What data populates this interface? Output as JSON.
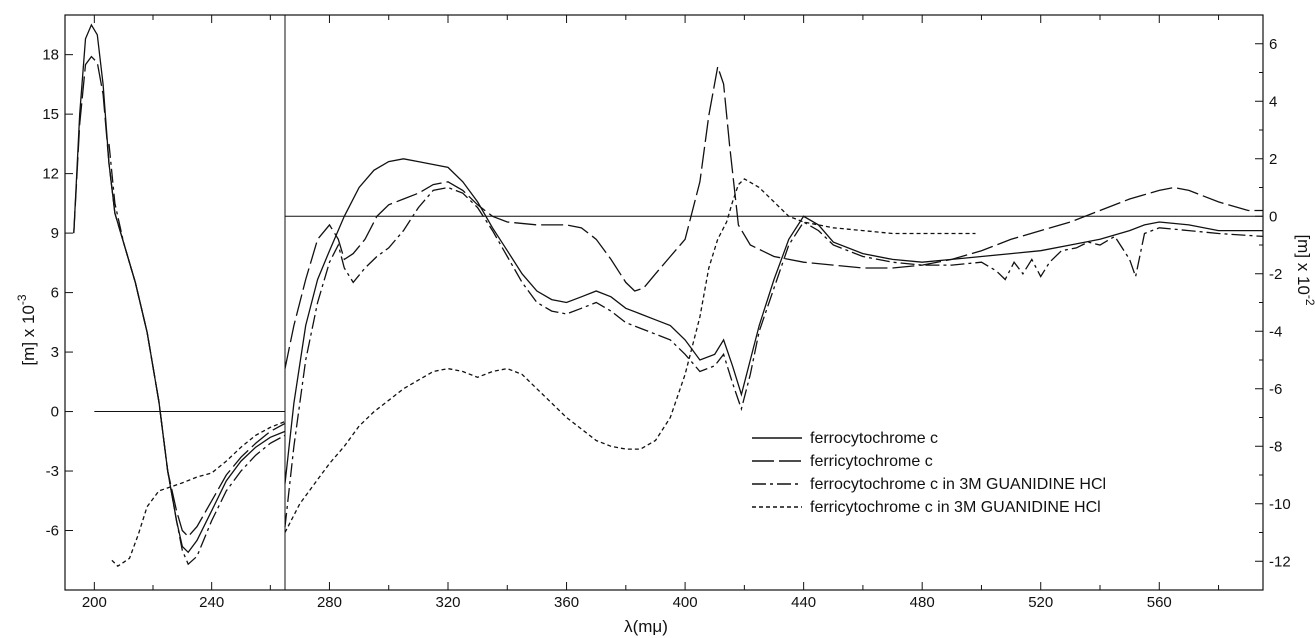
{
  "chart_data": {
    "type": "line",
    "title": "",
    "xlabel": "λ(mμ)",
    "left_panel": {
      "ylabel": "[m] x 10",
      "ylabel_exp": "-3",
      "xlim": [
        190,
        265
      ],
      "ylim": [
        -9,
        20
      ],
      "xticks": [
        200,
        240
      ],
      "xticks_minor": [
        220,
        260
      ],
      "yticks": [
        18,
        15,
        12,
        9,
        6,
        3,
        0,
        -3,
        -6
      ],
      "zero_line": {
        "x": [
          200,
          265
        ],
        "y": 0
      }
    },
    "right_panel": {
      "ylabel": "[m] x 10",
      "ylabel_exp": "-2",
      "xlim": [
        265,
        595
      ],
      "ylim": [
        -13,
        7
      ],
      "xticks": [
        280,
        320,
        360,
        400,
        440,
        480,
        520,
        560
      ],
      "yticks": [
        6,
        4,
        2,
        0,
        -2,
        -4,
        -6,
        -8,
        -10,
        -12
      ],
      "zero_line": {
        "x": [
          265,
          595
        ],
        "y": 0
      }
    },
    "legend": {
      "position": "lower-right",
      "entries": [
        {
          "label": "ferrocytochrome c",
          "style": "solid"
        },
        {
          "label": "ferricytochrome c",
          "style": "longdash"
        },
        {
          "label": "ferrocytochrome c in 3M GUANIDINE HCl",
          "style": "dashdot"
        },
        {
          "label": "ferricytochrome c in 3M GUANIDINE HCl",
          "style": "shortdash"
        }
      ]
    },
    "series": [
      {
        "style": "solid",
        "left": [
          [
            193,
            9
          ],
          [
            195,
            15
          ],
          [
            197,
            18.8
          ],
          [
            199,
            19.5
          ],
          [
            201,
            19
          ],
          [
            203,
            16.5
          ],
          [
            205,
            12.5
          ],
          [
            207,
            10
          ],
          [
            210,
            8.5
          ],
          [
            214,
            6.5
          ],
          [
            218,
            4
          ],
          [
            222,
            0.5
          ],
          [
            225,
            -3
          ],
          [
            228,
            -5.5
          ],
          [
            230,
            -6.8
          ],
          [
            232,
            -7.1
          ],
          [
            235,
            -6.5
          ],
          [
            240,
            -5
          ],
          [
            245,
            -3.5
          ],
          [
            250,
            -2.5
          ],
          [
            255,
            -1.8
          ],
          [
            260,
            -1.3
          ],
          [
            265,
            -1
          ]
        ],
        "right": [
          [
            265,
            -9.3
          ],
          [
            268,
            -6.5
          ],
          [
            272,
            -3.8
          ],
          [
            276,
            -2.2
          ],
          [
            280,
            -1.2
          ],
          [
            285,
            0
          ],
          [
            290,
            1
          ],
          [
            295,
            1.6
          ],
          [
            300,
            1.9
          ],
          [
            305,
            2
          ],
          [
            310,
            1.9
          ],
          [
            315,
            1.8
          ],
          [
            320,
            1.7
          ],
          [
            325,
            1.2
          ],
          [
            330,
            0.5
          ],
          [
            335,
            -0.4
          ],
          [
            340,
            -1.2
          ],
          [
            345,
            -2
          ],
          [
            350,
            -2.6
          ],
          [
            355,
            -2.9
          ],
          [
            360,
            -3
          ],
          [
            365,
            -2.8
          ],
          [
            370,
            -2.6
          ],
          [
            375,
            -2.8
          ],
          [
            380,
            -3.2
          ],
          [
            385,
            -3.4
          ],
          [
            390,
            -3.6
          ],
          [
            395,
            -3.8
          ],
          [
            400,
            -4.3
          ],
          [
            405,
            -5
          ],
          [
            410,
            -4.8
          ],
          [
            413,
            -4.3
          ],
          [
            416,
            -5.2
          ],
          [
            419,
            -6.2
          ],
          [
            422,
            -5
          ],
          [
            425,
            -3.8
          ],
          [
            430,
            -2.2
          ],
          [
            435,
            -0.8
          ],
          [
            440,
            0
          ],
          [
            445,
            -0.3
          ],
          [
            450,
            -0.9
          ],
          [
            460,
            -1.3
          ],
          [
            470,
            -1.5
          ],
          [
            480,
            -1.6
          ],
          [
            490,
            -1.5
          ],
          [
            500,
            -1.4
          ],
          [
            510,
            -1.3
          ],
          [
            520,
            -1.2
          ],
          [
            530,
            -1
          ],
          [
            540,
            -0.8
          ],
          [
            550,
            -0.5
          ],
          [
            555,
            -0.3
          ],
          [
            560,
            -0.2
          ],
          [
            570,
            -0.3
          ],
          [
            580,
            -0.5
          ],
          [
            595,
            -0.5
          ]
        ]
      },
      {
        "style": "longdash",
        "left": [
          [
            193,
            9
          ],
          [
            195,
            14.5
          ],
          [
            197,
            17.5
          ],
          [
            199,
            17.9
          ],
          [
            201,
            17.6
          ],
          [
            203,
            16
          ],
          [
            205,
            12.5
          ],
          [
            207,
            10
          ],
          [
            210,
            8.5
          ],
          [
            214,
            6.5
          ],
          [
            218,
            4
          ],
          [
            222,
            0.5
          ],
          [
            225,
            -3
          ],
          [
            228,
            -5
          ],
          [
            230,
            -6
          ],
          [
            232,
            -6.3
          ],
          [
            235,
            -5.8
          ],
          [
            240,
            -4.5
          ],
          [
            245,
            -3.2
          ],
          [
            250,
            -2.3
          ],
          [
            255,
            -1.6
          ],
          [
            260,
            -1
          ],
          [
            265,
            -0.6
          ]
        ],
        "right": [
          [
            265,
            -5.3
          ],
          [
            268,
            -3.8
          ],
          [
            272,
            -2.2
          ],
          [
            276,
            -0.8
          ],
          [
            280,
            -0.3
          ],
          [
            283,
            -0.8
          ],
          [
            285,
            -1.5
          ],
          [
            288,
            -1.3
          ],
          [
            292,
            -0.8
          ],
          [
            296,
            0
          ],
          [
            300,
            0.4
          ],
          [
            305,
            0.6
          ],
          [
            310,
            0.8
          ],
          [
            315,
            1.1
          ],
          [
            320,
            1.2
          ],
          [
            325,
            0.9
          ],
          [
            330,
            0.4
          ],
          [
            335,
            0
          ],
          [
            340,
            -0.2
          ],
          [
            350,
            -0.3
          ],
          [
            360,
            -0.3
          ],
          [
            365,
            -0.4
          ],
          [
            370,
            -0.8
          ],
          [
            375,
            -1.5
          ],
          [
            380,
            -2.3
          ],
          [
            383,
            -2.6
          ],
          [
            386,
            -2.5
          ],
          [
            390,
            -2
          ],
          [
            395,
            -1.4
          ],
          [
            400,
            -0.8
          ],
          [
            405,
            1.2
          ],
          [
            408,
            3.5
          ],
          [
            411,
            5.2
          ],
          [
            413,
            4.6
          ],
          [
            415,
            2.5
          ],
          [
            418,
            -0.3
          ],
          [
            422,
            -1
          ],
          [
            430,
            -1.4
          ],
          [
            440,
            -1.6
          ],
          [
            450,
            -1.7
          ],
          [
            460,
            -1.8
          ],
          [
            470,
            -1.8
          ],
          [
            480,
            -1.7
          ],
          [
            490,
            -1.5
          ],
          [
            500,
            -1.2
          ],
          [
            510,
            -0.8
          ],
          [
            520,
            -0.5
          ],
          [
            530,
            -0.2
          ],
          [
            540,
            0.2
          ],
          [
            550,
            0.6
          ],
          [
            560,
            0.9
          ],
          [
            565,
            1
          ],
          [
            570,
            0.9
          ],
          [
            580,
            0.5
          ],
          [
            590,
            0.2
          ],
          [
            595,
            0.2
          ]
        ]
      },
      {
        "style": "dashdot",
        "left": [
          [
            205,
            13.5
          ],
          [
            207,
            10.5
          ],
          [
            210,
            8.5
          ],
          [
            214,
            6.5
          ],
          [
            218,
            4
          ],
          [
            222,
            0.5
          ],
          [
            225,
            -3
          ],
          [
            228,
            -5.5
          ],
          [
            230,
            -7
          ],
          [
            232,
            -7.7
          ],
          [
            235,
            -7.3
          ],
          [
            240,
            -5.5
          ],
          [
            245,
            -4
          ],
          [
            250,
            -3
          ],
          [
            255,
            -2.2
          ],
          [
            260,
            -1.6
          ],
          [
            265,
            -1.2
          ]
        ],
        "right": [
          [
            265,
            -10.8
          ],
          [
            268,
            -8
          ],
          [
            272,
            -5
          ],
          [
            276,
            -3
          ],
          [
            280,
            -1.6
          ],
          [
            283,
            -1
          ],
          [
            285,
            -1.8
          ],
          [
            288,
            -2.3
          ],
          [
            292,
            -1.8
          ],
          [
            296,
            -1.4
          ],
          [
            300,
            -1.1
          ],
          [
            305,
            -0.5
          ],
          [
            310,
            0.3
          ],
          [
            315,
            0.9
          ],
          [
            320,
            1
          ],
          [
            325,
            0.8
          ],
          [
            330,
            0.3
          ],
          [
            335,
            -0.5
          ],
          [
            340,
            -1.4
          ],
          [
            345,
            -2.3
          ],
          [
            350,
            -3
          ],
          [
            355,
            -3.3
          ],
          [
            360,
            -3.4
          ],
          [
            365,
            -3.2
          ],
          [
            370,
            -3
          ],
          [
            375,
            -3.3
          ],
          [
            380,
            -3.7
          ],
          [
            385,
            -3.9
          ],
          [
            390,
            -4.1
          ],
          [
            395,
            -4.3
          ],
          [
            400,
            -4.8
          ],
          [
            405,
            -5.4
          ],
          [
            410,
            -5.2
          ],
          [
            413,
            -4.8
          ],
          [
            416,
            -5.8
          ],
          [
            419,
            -6.7
          ],
          [
            422,
            -5.5
          ],
          [
            425,
            -4
          ],
          [
            430,
            -2.5
          ],
          [
            435,
            -1
          ],
          [
            440,
            -0.2
          ],
          [
            445,
            -0.5
          ],
          [
            450,
            -1
          ],
          [
            460,
            -1.4
          ],
          [
            470,
            -1.6
          ],
          [
            480,
            -1.7
          ],
          [
            490,
            -1.7
          ],
          [
            500,
            -1.6
          ],
          [
            505,
            -1.9
          ],
          [
            508,
            -2.2
          ],
          [
            511,
            -1.6
          ],
          [
            514,
            -2
          ],
          [
            517,
            -1.5
          ],
          [
            520,
            -2.1
          ],
          [
            523,
            -1.6
          ],
          [
            527,
            -1.2
          ],
          [
            532,
            -1.1
          ],
          [
            536,
            -0.9
          ],
          [
            540,
            -1
          ],
          [
            545,
            -0.7
          ],
          [
            550,
            -1.5
          ],
          [
            552,
            -2.1
          ],
          [
            555,
            -0.6
          ],
          [
            560,
            -0.4
          ],
          [
            570,
            -0.5
          ],
          [
            580,
            -0.6
          ],
          [
            595,
            -0.7
          ]
        ]
      },
      {
        "style": "shortdash",
        "left": [
          [
            206,
            -7.5
          ],
          [
            208,
            -7.8
          ],
          [
            212,
            -7.4
          ],
          [
            215,
            -6.2
          ],
          [
            218,
            -4.8
          ],
          [
            222,
            -4
          ],
          [
            226,
            -3.8
          ],
          [
            230,
            -3.6
          ],
          [
            235,
            -3.3
          ],
          [
            240,
            -3.1
          ],
          [
            245,
            -2.5
          ],
          [
            250,
            -1.8
          ],
          [
            255,
            -1.2
          ],
          [
            260,
            -0.8
          ],
          [
            265,
            -0.5
          ]
        ],
        "right": [
          [
            265,
            -11
          ],
          [
            270,
            -10
          ],
          [
            275,
            -9.3
          ],
          [
            280,
            -8.6
          ],
          [
            285,
            -8
          ],
          [
            290,
            -7.3
          ],
          [
            295,
            -6.8
          ],
          [
            300,
            -6.4
          ],
          [
            305,
            -6
          ],
          [
            310,
            -5.7
          ],
          [
            315,
            -5.4
          ],
          [
            320,
            -5.3
          ],
          [
            325,
            -5.4
          ],
          [
            330,
            -5.6
          ],
          [
            335,
            -5.4
          ],
          [
            340,
            -5.3
          ],
          [
            345,
            -5.5
          ],
          [
            350,
            -6
          ],
          [
            355,
            -6.5
          ],
          [
            360,
            -7
          ],
          [
            365,
            -7.4
          ],
          [
            370,
            -7.8
          ],
          [
            375,
            -8
          ],
          [
            380,
            -8.1
          ],
          [
            385,
            -8.1
          ],
          [
            390,
            -7.8
          ],
          [
            395,
            -7
          ],
          [
            400,
            -5.5
          ],
          [
            405,
            -3.5
          ],
          [
            408,
            -1.8
          ],
          [
            411,
            -0.8
          ],
          [
            414,
            -0.2
          ],
          [
            416,
            0.5
          ],
          [
            418,
            1.1
          ],
          [
            420,
            1.3
          ],
          [
            425,
            1
          ],
          [
            430,
            0.5
          ],
          [
            435,
            0
          ],
          [
            440,
            -0.2
          ],
          [
            450,
            -0.4
          ],
          [
            460,
            -0.5
          ],
          [
            470,
            -0.6
          ],
          [
            480,
            -0.6
          ],
          [
            490,
            -0.6
          ],
          [
            498,
            -0.6
          ]
        ]
      }
    ]
  }
}
